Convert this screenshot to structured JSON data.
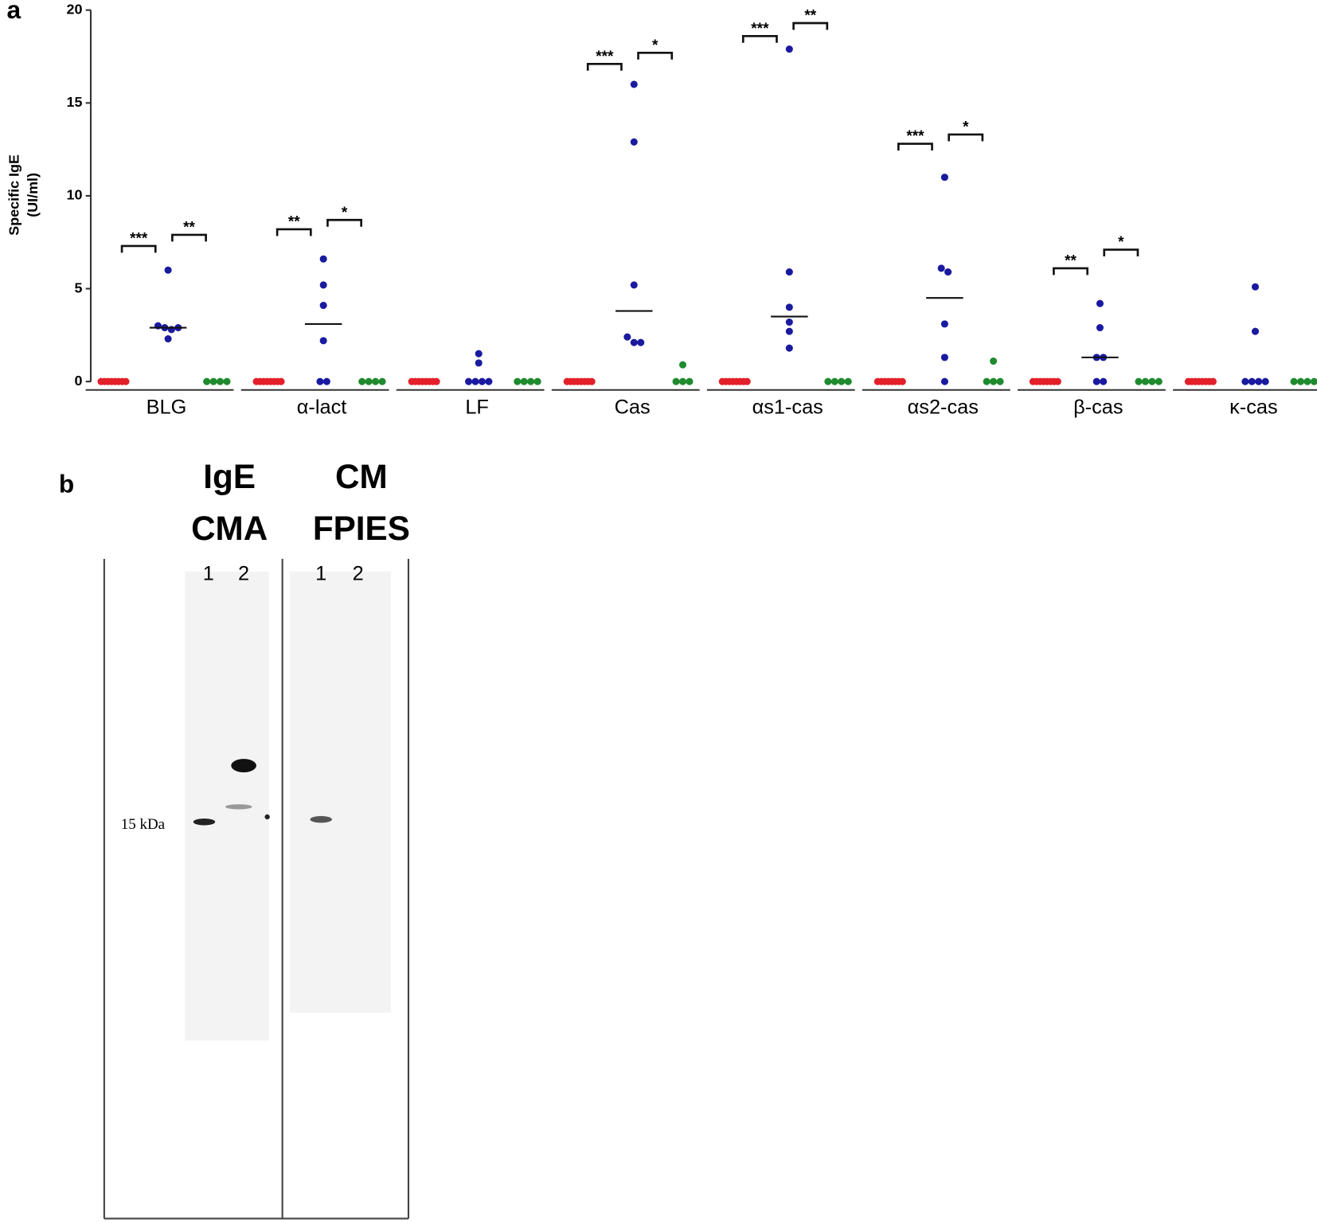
{
  "panel_labels": [
    "a",
    "b"
  ],
  "chart_data": {
    "type": "strip",
    "ylabel_lines": [
      "Specific IgE",
      "(UI/ml)"
    ],
    "ylim": [
      0,
      20
    ],
    "yticks": [
      0,
      5,
      10,
      15,
      20
    ],
    "categories": [
      "BLG",
      "α-lact",
      "LF",
      "Cas",
      "αs1-cas",
      "αs2-cas",
      "β-cas",
      "κ-cas"
    ],
    "series": [
      {
        "color": "#e3202a",
        "values": [
          [
            0,
            0,
            0,
            0,
            0,
            0,
            0,
            0
          ],
          [
            0,
            0,
            0,
            0,
            0,
            0,
            0,
            0
          ],
          [
            0,
            0,
            0,
            0,
            0,
            0,
            0,
            0
          ],
          [
            0,
            0,
            0,
            0,
            0,
            0,
            0,
            0
          ],
          [
            0,
            0,
            0,
            0,
            0,
            0,
            0,
            0
          ],
          [
            0,
            0,
            0,
            0,
            0,
            0,
            0,
            0
          ],
          [
            0,
            0,
            0,
            0,
            0,
            0,
            0,
            0
          ],
          [
            0,
            0,
            0,
            0,
            0,
            0,
            0,
            0
          ]
        ]
      },
      {
        "color": "#1a1aa0",
        "values": [
          [
            6.0,
            3.0,
            2.9,
            2.8,
            2.9,
            2.3
          ],
          [
            6.6,
            5.2,
            4.1,
            2.2,
            0,
            0
          ],
          [
            1.5,
            1.0,
            0,
            0,
            0,
            0
          ],
          [
            16.0,
            12.9,
            5.2,
            2.4,
            2.1,
            2.1
          ],
          [
            17.9,
            5.9,
            4.0,
            3.2,
            2.7,
            1.8
          ],
          [
            11.0,
            6.1,
            5.9,
            3.1,
            1.3,
            0
          ],
          [
            4.2,
            2.9,
            1.3,
            1.3,
            0,
            0
          ],
          [
            5.1,
            2.7,
            0,
            0,
            0,
            0
          ]
        ]
      },
      {
        "color": "#1f8a2e",
        "values": [
          [
            0,
            0,
            0,
            0
          ],
          [
            0,
            0,
            0,
            0
          ],
          [
            0,
            0,
            0,
            0
          ],
          [
            0.9,
            0,
            0,
            0
          ],
          [
            0,
            0,
            0,
            0
          ],
          [
            1.1,
            0,
            0,
            0
          ],
          [
            0,
            0,
            0,
            0
          ],
          [
            0,
            0,
            0,
            0
          ]
        ]
      }
    ],
    "medians": [
      2.9,
      3.1,
      null,
      3.8,
      3.5,
      4.5,
      1.3,
      null
    ],
    "brackets": [
      {
        "category": 0,
        "labels": [
          "***",
          "**"
        ],
        "heights": [
          7.3,
          7.9
        ]
      },
      {
        "category": 1,
        "labels": [
          "**",
          "*"
        ],
        "heights": [
          8.2,
          8.7
        ]
      },
      {
        "category": 3,
        "labels": [
          "***",
          "*"
        ],
        "heights": [
          17.1,
          17.7
        ]
      },
      {
        "category": 4,
        "labels": [
          "***",
          "**"
        ],
        "heights": [
          18.6,
          19.3
        ]
      },
      {
        "category": 5,
        "labels": [
          "***",
          "*"
        ],
        "heights": [
          12.8,
          13.3
        ]
      },
      {
        "category": 6,
        "labels": [
          "**",
          "*"
        ],
        "heights": [
          6.1,
          7.1
        ]
      }
    ]
  },
  "blot": {
    "groups": [
      [
        "IgE",
        "CMA"
      ],
      [
        "CM",
        "FPIES"
      ]
    ],
    "lanes": [
      "1",
      "2",
      "1",
      "2"
    ],
    "marker": "15 kDa"
  }
}
